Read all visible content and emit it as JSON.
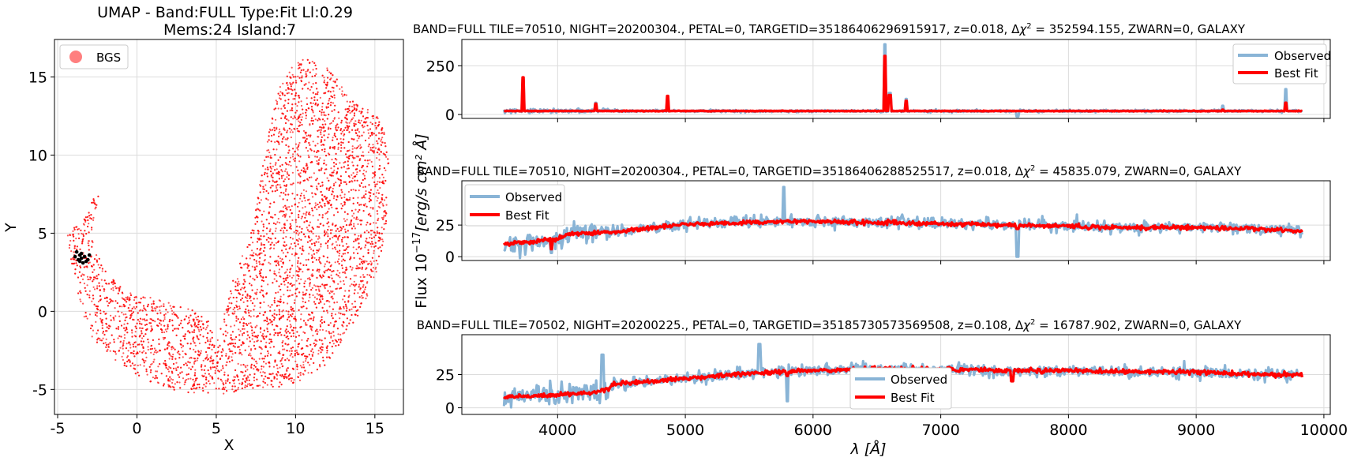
{
  "chart_data": [
    {
      "type": "scatter",
      "title": "UMAP  -  Band:FULL Type:Fit Ll:0.29",
      "subtitle": "Mems:24 Island:7",
      "xlabel": "X",
      "ylabel": "Y",
      "xlim": [
        -5.2,
        16.8
      ],
      "ylim": [
        -6.6,
        17.4
      ],
      "xticks": [
        "-5",
        "0",
        "5",
        "10",
        "15"
      ],
      "xtick_values": [
        -5,
        0,
        5,
        10,
        15
      ],
      "yticks": [
        "-5",
        "0",
        "5",
        "10",
        "15"
      ],
      "ytick_values": [
        -5,
        0,
        5,
        10,
        15
      ],
      "grid": true,
      "legend": {
        "position": "top-left",
        "entries": [
          "BGS"
        ]
      },
      "series": [
        {
          "name": "BGS",
          "color": "#ff0000",
          "point_count_approx": 6000,
          "shape_outline": [
            [
              -4.4,
              5.0
            ],
            [
              -3.4,
              5.8
            ],
            [
              -2.6,
              7.6
            ],
            [
              -2.4,
              7.5
            ],
            [
              -2.9,
              4.8
            ],
            [
              -2.0,
              2.6
            ],
            [
              -0.6,
              1.2
            ],
            [
              1.6,
              0.7
            ],
            [
              3.3,
              0.2
            ],
            [
              4.4,
              -0.5
            ],
            [
              5.2,
              -1.7
            ],
            [
              5.4,
              -0.2
            ],
            [
              6.0,
              1.8
            ],
            [
              7.0,
              4.5
            ],
            [
              7.6,
              7.4
            ],
            [
              8.1,
              10.2
            ],
            [
              8.7,
              13.5
            ],
            [
              9.4,
              15.5
            ],
            [
              10.0,
              16.1
            ],
            [
              11.1,
              16.1
            ],
            [
              12.1,
              15.6
            ],
            [
              12.8,
              14.6
            ],
            [
              13.5,
              13.5
            ],
            [
              14.6,
              12.9
            ],
            [
              15.4,
              12.2
            ],
            [
              15.9,
              10.3
            ],
            [
              15.7,
              5.2
            ],
            [
              15.0,
              2.0
            ],
            [
              13.6,
              -1.0
            ],
            [
              11.8,
              -3.5
            ],
            [
              9.9,
              -4.8
            ],
            [
              7.5,
              -4.9
            ],
            [
              5.6,
              -5.3
            ],
            [
              3.0,
              -5.2
            ],
            [
              0.8,
              -4.6
            ],
            [
              -1.3,
              -3.2
            ],
            [
              -2.9,
              -1.6
            ],
            [
              -3.5,
              0.0
            ],
            [
              -3.9,
              2.0
            ],
            [
              -4.2,
              3.5
            ]
          ]
        },
        {
          "name": "",
          "color": "#000000",
          "points": [
            [
              -3.8,
              3.8
            ],
            [
              -3.6,
              3.6
            ],
            [
              -3.5,
              3.4
            ],
            [
              -3.7,
              3.3
            ],
            [
              -3.3,
              3.5
            ],
            [
              -3.1,
              3.3
            ],
            [
              -3.4,
              3.1
            ],
            [
              -3.0,
              3.6
            ],
            [
              -3.9,
              3.5
            ],
            [
              -3.6,
              3.2
            ],
            [
              -3.2,
              3.2
            ],
            [
              -3.5,
              3.7
            ]
          ]
        }
      ]
    },
    {
      "type": "line",
      "title": "BAND=FULL TILE=70510, NIGHT=20200304., PETAL=0, TARGETID=35186406296915917, z=0.018, Δχ² = 352594.155, ZWARN=0, GALAXY",
      "title_main": "BAND=FULL TILE=70510, NIGHT=20200304., PETAL=0, TARGETID=35186406296915917, z=0.018, Δ",
      "title_chi": "χ",
      "title_sup": "2",
      "title_tail": " = 352594.155, ZWARN=0, GALAXY",
      "xlim": [
        3250,
        10050
      ],
      "ylim": [
        -20,
        385
      ],
      "yticks": [
        "0",
        "250"
      ],
      "ytick_values": [
        0,
        250
      ],
      "grid": true,
      "legend": {
        "position": "top-right",
        "entries": [
          "Observed",
          "Best Fit"
        ]
      },
      "series": [
        {
          "name": "Observed",
          "color": "#89b4d6",
          "baseline": 18,
          "noise": 3
        },
        {
          "name": "Best Fit",
          "color": "#ff0000",
          "baseline": 18,
          "noise": 1
        }
      ],
      "features": [
        {
          "wave": 3727,
          "observed": 180,
          "fit": 190
        },
        {
          "wave": 4300,
          "observed": 60,
          "fit": 55
        },
        {
          "wave": 4862,
          "observed": 90,
          "fit": 95
        },
        {
          "wave": 6563,
          "observed": 360,
          "fit": 300
        },
        {
          "wave": 6600,
          "observed": 110,
          "fit": 100
        },
        {
          "wave": 6730,
          "observed": 80,
          "fit": 70
        },
        {
          "wave": 7600,
          "observed": -10,
          "fit": 18
        },
        {
          "wave": 9210,
          "observed": 45,
          "fit": 25
        },
        {
          "wave": 9700,
          "observed": 130,
          "fit": 60
        }
      ]
    },
    {
      "type": "line",
      "title": "BAND=FULL TILE=70510, NIGHT=20200304., PETAL=0, TARGETID=35186406288525517, z=0.018, Δχ² = 45835.079, ZWARN=0, GALAXY",
      "title_main": "BAND=FULL TILE=70510, NIGHT=20200304., PETAL=0, TARGETID=35186406288525517, z=0.018, Δ",
      "title_chi": "χ",
      "title_sup": "2",
      "title_tail": " = 45835.079, ZWARN=0, GALAXY",
      "ylabel_main": "Flux 10",
      "ylabel_exp": "−17",
      "ylabel_unit": "[erg/s cm² Å]",
      "xlim": [
        3250,
        10050
      ],
      "ylim": [
        -3,
        60
      ],
      "yticks": [
        "0",
        "25"
      ],
      "ytick_values": [
        0,
        25
      ],
      "grid": true,
      "legend": {
        "position": "top-left",
        "entries": [
          "Observed",
          "Best Fit"
        ]
      },
      "series": [
        {
          "name": "Observed",
          "color": "#89b4d6"
        },
        {
          "name": "Best Fit",
          "color": "#ff0000"
        }
      ],
      "continuum": [
        [
          3580,
          10
        ],
        [
          4000,
          14
        ],
        [
          4100,
          18
        ],
        [
          4500,
          20
        ],
        [
          5000,
          26
        ],
        [
          5500,
          27
        ],
        [
          6000,
          28
        ],
        [
          6500,
          27
        ],
        [
          7000,
          26
        ],
        [
          7500,
          25
        ],
        [
          8000,
          24
        ],
        [
          8500,
          23
        ],
        [
          9000,
          23
        ],
        [
          9500,
          22
        ],
        [
          9830,
          20
        ]
      ],
      "features": [
        {
          "wave": 5770,
          "observed": 55,
          "fit": 28
        },
        {
          "wave": 7600,
          "observed": 0,
          "fit": 22
        },
        {
          "wave": 3950,
          "observed": 3,
          "fit": 6
        }
      ]
    },
    {
      "type": "line",
      "title": "BAND=FULL TILE=70502, NIGHT=20200225., PETAL=0, TARGETID=35185730573569508, z=0.108, Δχ² = 16787.902, ZWARN=0, GALAXY",
      "title_main": "BAND=FULL TILE=70502, NIGHT=20200225., PETAL=0, TARGETID=35185730573569508, z=0.108, Δ",
      "title_chi": "χ",
      "title_sup": "2",
      "title_tail": " = 16787.902, ZWARN=0, GALAXY",
      "xlabel_main": "λ ",
      "xlabel_unit": "[Å]",
      "xlim": [
        3250,
        10050
      ],
      "ylim": [
        -5,
        55
      ],
      "xticks": [
        "4000",
        "5000",
        "6000",
        "7000",
        "8000",
        "9000",
        "10000"
      ],
      "xtick_values": [
        4000,
        5000,
        6000,
        7000,
        8000,
        9000,
        10000
      ],
      "yticks": [
        "0",
        "25"
      ],
      "ytick_values": [
        0,
        25
      ],
      "grid": true,
      "legend": {
        "position": "lower-center",
        "entries": [
          "Observed",
          "Best Fit"
        ]
      },
      "series": [
        {
          "name": "Observed",
          "color": "#89b4d6"
        },
        {
          "name": "Best Fit",
          "color": "#ff0000"
        }
      ],
      "continuum": [
        [
          3580,
          8
        ],
        [
          4000,
          10
        ],
        [
          4350,
          12
        ],
        [
          4450,
          18
        ],
        [
          5000,
          22
        ],
        [
          5500,
          26
        ],
        [
          6000,
          28
        ],
        [
          6500,
          29
        ],
        [
          7000,
          29
        ],
        [
          7500,
          28
        ],
        [
          8000,
          28
        ],
        [
          8500,
          27
        ],
        [
          9000,
          27
        ],
        [
          9500,
          25
        ],
        [
          9830,
          25
        ]
      ],
      "features": [
        {
          "wave": 5580,
          "observed": 48,
          "fit": 26
        },
        {
          "wave": 4350,
          "observed": 40,
          "fit": 14
        },
        {
          "wave": 5800,
          "observed": 5,
          "fit": 24
        },
        {
          "wave": 7560,
          "observed": 28,
          "fit": 20
        }
      ]
    }
  ]
}
